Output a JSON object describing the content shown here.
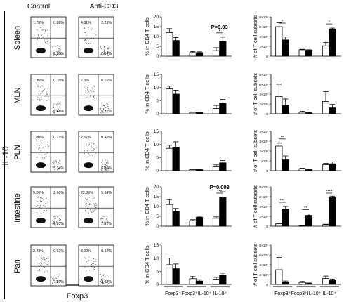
{
  "header": {
    "control": "Control",
    "treatment": "Anti-CD3"
  },
  "left_label": "IL-10",
  "bottom_label": "Foxp3",
  "tissues": [
    "Spleen",
    "MLN",
    "PLN",
    "Intestine",
    "Pan"
  ],
  "flow_quadrants": [
    {
      "control": [
        "1.76%",
        "0.86%",
        "0.80%"
      ],
      "treatment": [
        "4.81%",
        "2.25%",
        "7.14%"
      ]
    },
    {
      "control": [
        "1.36%",
        "0.35%",
        "6.48%"
      ],
      "treatment": [
        "2.3%",
        "0.61%",
        "5.21%"
      ]
    },
    {
      "control": [
        "1.00%",
        "0.21%",
        "5.34%"
      ],
      "treatment": [
        "2.57%",
        "0.42%",
        "6.86%"
      ]
    },
    {
      "control": [
        "5.26%",
        "2.60%",
        "7.83%"
      ],
      "treatment": [
        "22.39%",
        "5.14%",
        "7.17%"
      ]
    },
    {
      "control": [
        "2.48%",
        "0.61%",
        "7.80%"
      ],
      "treatment": [
        "8.02%",
        "0.52%",
        "3.43%"
      ]
    }
  ],
  "colors": {
    "control": "#ffffff",
    "treatment": "#000000",
    "dots": "#222222"
  },
  "chart_data": [
    {
      "type": "bar",
      "panel": "percent",
      "tissue": "Spleen",
      "ylabel": "% in CD4 T cells",
      "yticks": [
        "0",
        "5",
        "10",
        "15",
        "20"
      ],
      "ylim": [
        0,
        20
      ],
      "categories": [
        "Foxp3+",
        "Foxp3+IL-10+",
        "IL-10+"
      ],
      "series": [
        {
          "values": [
            12,
            1.8,
            2.8
          ],
          "errors": [
            2.0,
            0.5,
            1.5
          ]
        },
        {
          "values": [
            8,
            1.8,
            7.5
          ],
          "errors": [
            1.5,
            0.4,
            2.2
          ]
        }
      ],
      "annotations": [
        {
          "group": 2,
          "text": "P=0.03",
          "stars": "*"
        }
      ]
    },
    {
      "type": "bar",
      "panel": "percent",
      "tissue": "MLN",
      "ylabel": "% in CD4 T cells",
      "yticks": [
        "0",
        "5",
        "10",
        "15"
      ],
      "ylim": [
        0,
        15
      ],
      "categories": [
        "Foxp3+",
        "Foxp3+IL-10+",
        "IL-10+"
      ],
      "series": [
        {
          "values": [
            9.5,
            0.5,
            2.0
          ],
          "errors": [
            1.0,
            0.2,
            1.2
          ]
        },
        {
          "values": [
            7.5,
            0.4,
            4.0
          ],
          "errors": [
            1.5,
            0.2,
            1.5
          ]
        }
      ],
      "annotations": []
    },
    {
      "type": "bar",
      "panel": "percent",
      "tissue": "PLN",
      "ylabel": "% in CD4 T cells",
      "yticks": [
        "0",
        "5",
        "10",
        "15"
      ],
      "ylim": [
        0,
        15
      ],
      "categories": [
        "Foxp3+",
        "Foxp3+IL-10+",
        "IL-10+"
      ],
      "series": [
        {
          "values": [
            8.5,
            0.4,
            1.5
          ],
          "errors": [
            1.2,
            0.2,
            0.7
          ]
        },
        {
          "values": [
            9,
            0.4,
            3.0
          ],
          "errors": [
            2.0,
            0.2,
            0.9
          ]
        }
      ],
      "annotations": []
    },
    {
      "type": "bar",
      "panel": "percent",
      "tissue": "Intestine",
      "ylabel": "% in CD4 T cells",
      "yticks": [
        "0",
        "5",
        "10",
        "15",
        "20"
      ],
      "ylim": [
        0,
        20
      ],
      "categories": [
        "Foxp3+",
        "Foxp3+IL-10+",
        "IL-10+"
      ],
      "series": [
        {
          "values": [
            11,
            2.8,
            4.0
          ],
          "errors": [
            2.5,
            0.5,
            0.7
          ]
        },
        {
          "values": [
            7.5,
            4.5,
            14.5
          ],
          "errors": [
            1.5,
            0.5,
            3.0
          ]
        }
      ],
      "annotations": [
        {
          "group": 2,
          "text": "P=0.008",
          "stars": "***"
        }
      ]
    },
    {
      "type": "bar",
      "panel": "percent",
      "tissue": "Pan",
      "ylabel": "% in CD4 T cells",
      "yticks": [
        "0",
        "5",
        "10",
        "15"
      ],
      "ylim": [
        0,
        15
      ],
      "categories": [
        "Foxp3+",
        "Foxp3+IL-10+",
        "IL-10+"
      ],
      "series": [
        {
          "values": [
            7.5,
            2.2,
            2.0
          ],
          "errors": [
            2.5,
            0.8,
            0.7
          ]
        },
        {
          "values": [
            6.0,
            1.3,
            3.5
          ],
          "errors": [
            1.8,
            0.5,
            0.8
          ]
        }
      ],
      "annotations": []
    },
    {
      "type": "bar",
      "panel": "count",
      "tissue": "Spleen",
      "ylabel": "# of T cell subsets",
      "yticks": [
        "0",
        "2×10⁶",
        "4×10⁶",
        "6×10⁶",
        "8×10⁶"
      ],
      "ylim": [
        0,
        8000000
      ],
      "categories": [
        "Foxp3+",
        "Foxp3+IL-10+",
        "IL-10+"
      ],
      "series": [
        {
          "values": [
            6000000,
            1300000,
            2100000
          ],
          "errors": [
            800000,
            100000,
            700000
          ]
        },
        {
          "values": [
            3300000,
            1200000,
            5500000
          ],
          "errors": [
            600000,
            100000,
            200000
          ]
        }
      ],
      "annotations": [
        {
          "group": 0,
          "stars": "*"
        },
        {
          "group": 2,
          "stars": "*"
        }
      ]
    },
    {
      "type": "bar",
      "panel": "count",
      "tissue": "MLN",
      "ylabel": "# of T cell subsets",
      "yticks": [
        "0",
        "2×10⁶",
        "4×10⁶",
        "6×10⁶",
        "8×10⁶"
      ],
      "ylim": [
        0,
        8000000
      ],
      "categories": [
        "Foxp3+",
        "Foxp3+IL-10+",
        "IL-10+"
      ],
      "series": [
        {
          "values": [
            3500000,
            300000,
            2500000
          ],
          "errors": [
            2500000,
            200000,
            2000000
          ]
        },
        {
          "values": [
            1800000,
            150000,
            1200000
          ],
          "errors": [
            1200000,
            100000,
            700000
          ]
        }
      ],
      "annotations": []
    },
    {
      "type": "bar",
      "panel": "count",
      "tissue": "PLN",
      "ylabel": "# of T cell subsets",
      "yticks": [
        "0",
        "1×10⁶",
        "2×10⁶",
        "3×10⁶",
        "4×10⁶"
      ],
      "ylim": [
        0,
        4000000
      ],
      "categories": [
        "Foxp3+",
        "Foxp3+IL-10+",
        "IL-10+"
      ],
      "series": [
        {
          "values": [
            2500000,
            200000,
            600000
          ],
          "errors": [
            300000,
            50000,
            150000
          ]
        },
        {
          "values": [
            1100000,
            100000,
            700000
          ],
          "errors": [
            400000,
            50000,
            200000
          ]
        }
      ],
      "annotations": [
        {
          "group": 0,
          "stars": "**"
        }
      ]
    },
    {
      "type": "bar",
      "panel": "count",
      "tissue": "Intestine",
      "ylabel": "# of T cell subsets",
      "yticks": [
        "0",
        "2×10⁶",
        "4×10⁶",
        "6×10⁶",
        "8×10⁶"
      ],
      "ylim": [
        0,
        8000000
      ],
      "categories": [
        "Foxp3+",
        "Foxp3+IL-10+",
        "IL-10+"
      ],
      "series": [
        {
          "values": [
            500000,
            100000,
            300000
          ],
          "errors": [
            100000,
            50000,
            100000
          ]
        },
        {
          "values": [
            3500000,
            2200000,
            5800000
          ],
          "errors": [
            500000,
            300000,
            300000
          ]
        }
      ],
      "annotations": [
        {
          "group": 0,
          "stars": "***"
        },
        {
          "group": 1,
          "stars": "**"
        },
        {
          "group": 2,
          "stars": "****"
        }
      ]
    },
    {
      "type": "bar",
      "panel": "count",
      "tissue": "Pan",
      "ylabel": "# of T cell subsets",
      "yticks": [
        "0",
        "2×10⁶",
        "4×10⁶",
        "6×10⁶",
        "8×10⁶"
      ],
      "ylim": [
        0,
        8000000
      ],
      "categories": [
        "Foxp3+",
        "Foxp3+IL-10+",
        "IL-10+"
      ],
      "series": [
        {
          "values": [
            3000000,
            400000,
            1200000
          ],
          "errors": [
            2500000,
            200000,
            500000
          ]
        },
        {
          "values": [
            500000,
            200000,
            800000
          ],
          "errors": [
            200000,
            100000,
            300000
          ]
        }
      ],
      "annotations": []
    }
  ],
  "group_labels": [
    "Foxp3⁺",
    "Foxp3⁺IL-10⁺",
    "IL-10⁺"
  ]
}
